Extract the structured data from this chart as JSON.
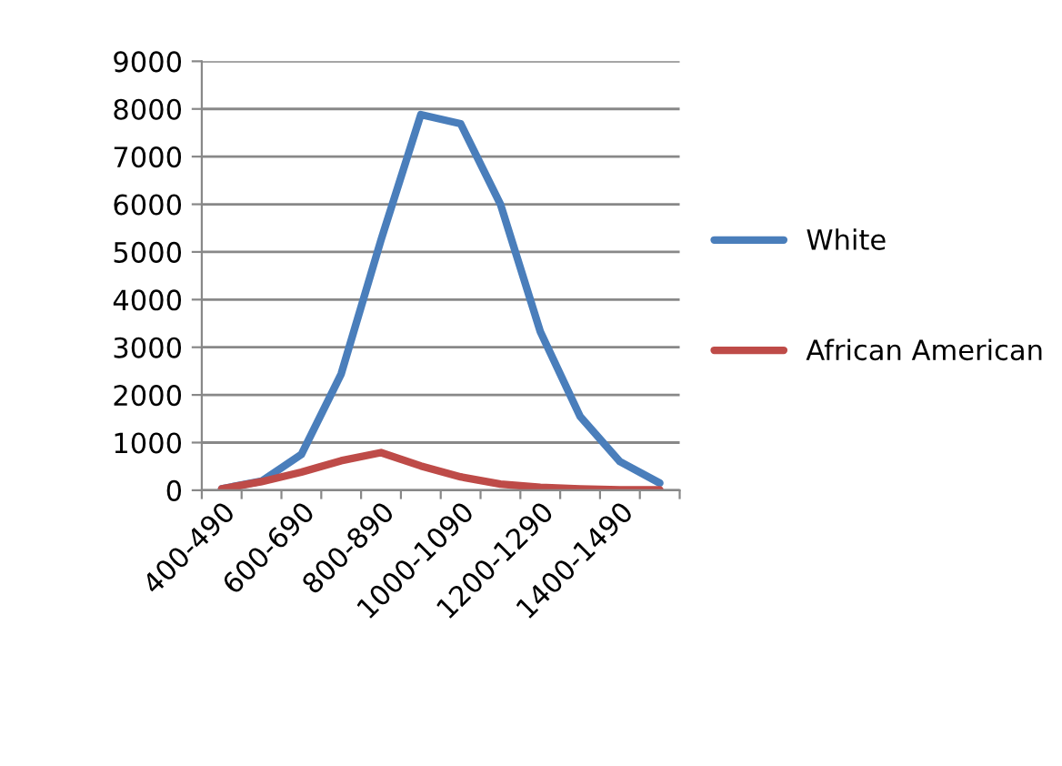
{
  "chart_data": {
    "type": "line",
    "categories": [
      "400-490",
      null,
      "600-690",
      null,
      "800-890",
      null,
      "1000-1090",
      null,
      "1200-1290",
      null,
      "1400-1490",
      null
    ],
    "series": [
      {
        "name": "White",
        "color": "#4a7ebb",
        "values": [
          30,
          190,
          750,
          2440,
          5250,
          7880,
          7690,
          6000,
          3330,
          1550,
          600,
          150
        ]
      },
      {
        "name": "African American",
        "color": "#be4b48",
        "values": [
          30,
          180,
          380,
          620,
          790,
          510,
          280,
          130,
          60,
          30,
          10,
          10
        ]
      }
    ],
    "ylim": [
      0,
      9000
    ],
    "yticks": [
      0,
      1000,
      2000,
      3000,
      4000,
      5000,
      6000,
      7000,
      8000,
      9000
    ],
    "grid": "y",
    "legend": "right",
    "marker": "none",
    "line_style": "solid"
  }
}
